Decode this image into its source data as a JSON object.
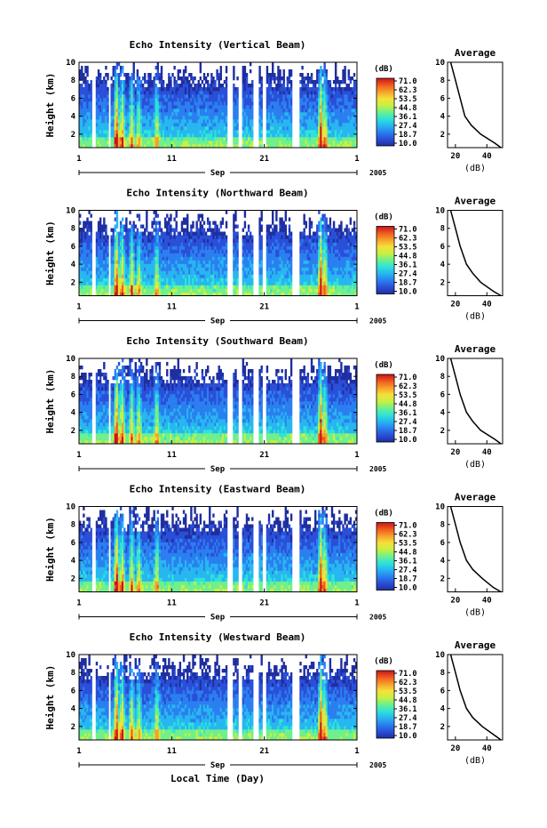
{
  "chart_data": {
    "type": "heatmap",
    "colorbar": {
      "unit": "(dB)",
      "ticks": [
        "71.0",
        "62.3",
        "53.5",
        "44.8",
        "36.1",
        "27.4",
        "18.7",
        "10.0"
      ],
      "range": [
        10.0,
        71.0
      ],
      "colors": [
        "#1f2ea0",
        "#2a4fd8",
        "#2a7ff0",
        "#27b6f0",
        "#2ee3d8",
        "#6ff08c",
        "#c8f040",
        "#f6e03a",
        "#f7a02a",
        "#f05a1e",
        "#c8141e"
      ]
    },
    "x_axis": {
      "ticks": [
        "1",
        "11",
        "21",
        "1"
      ],
      "month": "Sep",
      "year": "2005",
      "xlabel": "Local Time (Day)"
    },
    "y_axis": {
      "ylabel": "Height (km)",
      "ylim": [
        0.5,
        10
      ],
      "ticks": [
        "2",
        "4",
        "6",
        "8",
        "10"
      ]
    },
    "panels": [
      {
        "title": "Echo Intensity (Vertical Beam)",
        "avg_title": "Average",
        "avg_xlabel": "(dB)",
        "avg_xticks": [
          "20",
          "40"
        ],
        "average_profile": [
          [
            49,
            0.5
          ],
          [
            45,
            1
          ],
          [
            36,
            2
          ],
          [
            30,
            3
          ],
          [
            26,
            4
          ],
          [
            23,
            6
          ],
          [
            20,
            8
          ],
          [
            17,
            10
          ]
        ]
      },
      {
        "title": "Echo Intensity (Northward Beam)",
        "avg_title": "Average",
        "avg_xlabel": "(dB)",
        "avg_xticks": [
          "20",
          "40"
        ],
        "average_profile": [
          [
            49,
            0.5
          ],
          [
            44,
            1
          ],
          [
            36,
            2
          ],
          [
            31,
            3
          ],
          [
            27,
            4
          ],
          [
            23,
            6
          ],
          [
            20,
            8
          ],
          [
            17,
            10
          ]
        ]
      },
      {
        "title": "Echo Intensity (Southward Beam)",
        "avg_title": "Average",
        "avg_xlabel": "(dB)",
        "avg_xticks": [
          "20",
          "40"
        ],
        "average_profile": [
          [
            49,
            0.5
          ],
          [
            45,
            1
          ],
          [
            36,
            2
          ],
          [
            31,
            3
          ],
          [
            27,
            4
          ],
          [
            23,
            6
          ],
          [
            20,
            8
          ],
          [
            17,
            10
          ]
        ]
      },
      {
        "title": "Echo Intensity (Eastward Beam)",
        "avg_title": "Average",
        "avg_xlabel": "(dB)",
        "avg_xticks": [
          "20",
          "40"
        ],
        "average_profile": [
          [
            49,
            0.5
          ],
          [
            44,
            1
          ],
          [
            37,
            2
          ],
          [
            31,
            3
          ],
          [
            27,
            4
          ],
          [
            23,
            6
          ],
          [
            20,
            8
          ],
          [
            17,
            10
          ]
        ]
      },
      {
        "title": "Echo Intensity (Westward Beam)",
        "avg_title": "Average",
        "avg_xlabel": "(dB)",
        "avg_xticks": [
          "20",
          "40"
        ],
        "average_profile": [
          [
            49,
            0.5
          ],
          [
            45,
            1
          ],
          [
            37,
            2
          ],
          [
            31,
            3
          ],
          [
            27,
            4
          ],
          [
            23,
            6
          ],
          [
            20,
            8
          ],
          [
            17,
            10
          ]
        ]
      }
    ]
  }
}
